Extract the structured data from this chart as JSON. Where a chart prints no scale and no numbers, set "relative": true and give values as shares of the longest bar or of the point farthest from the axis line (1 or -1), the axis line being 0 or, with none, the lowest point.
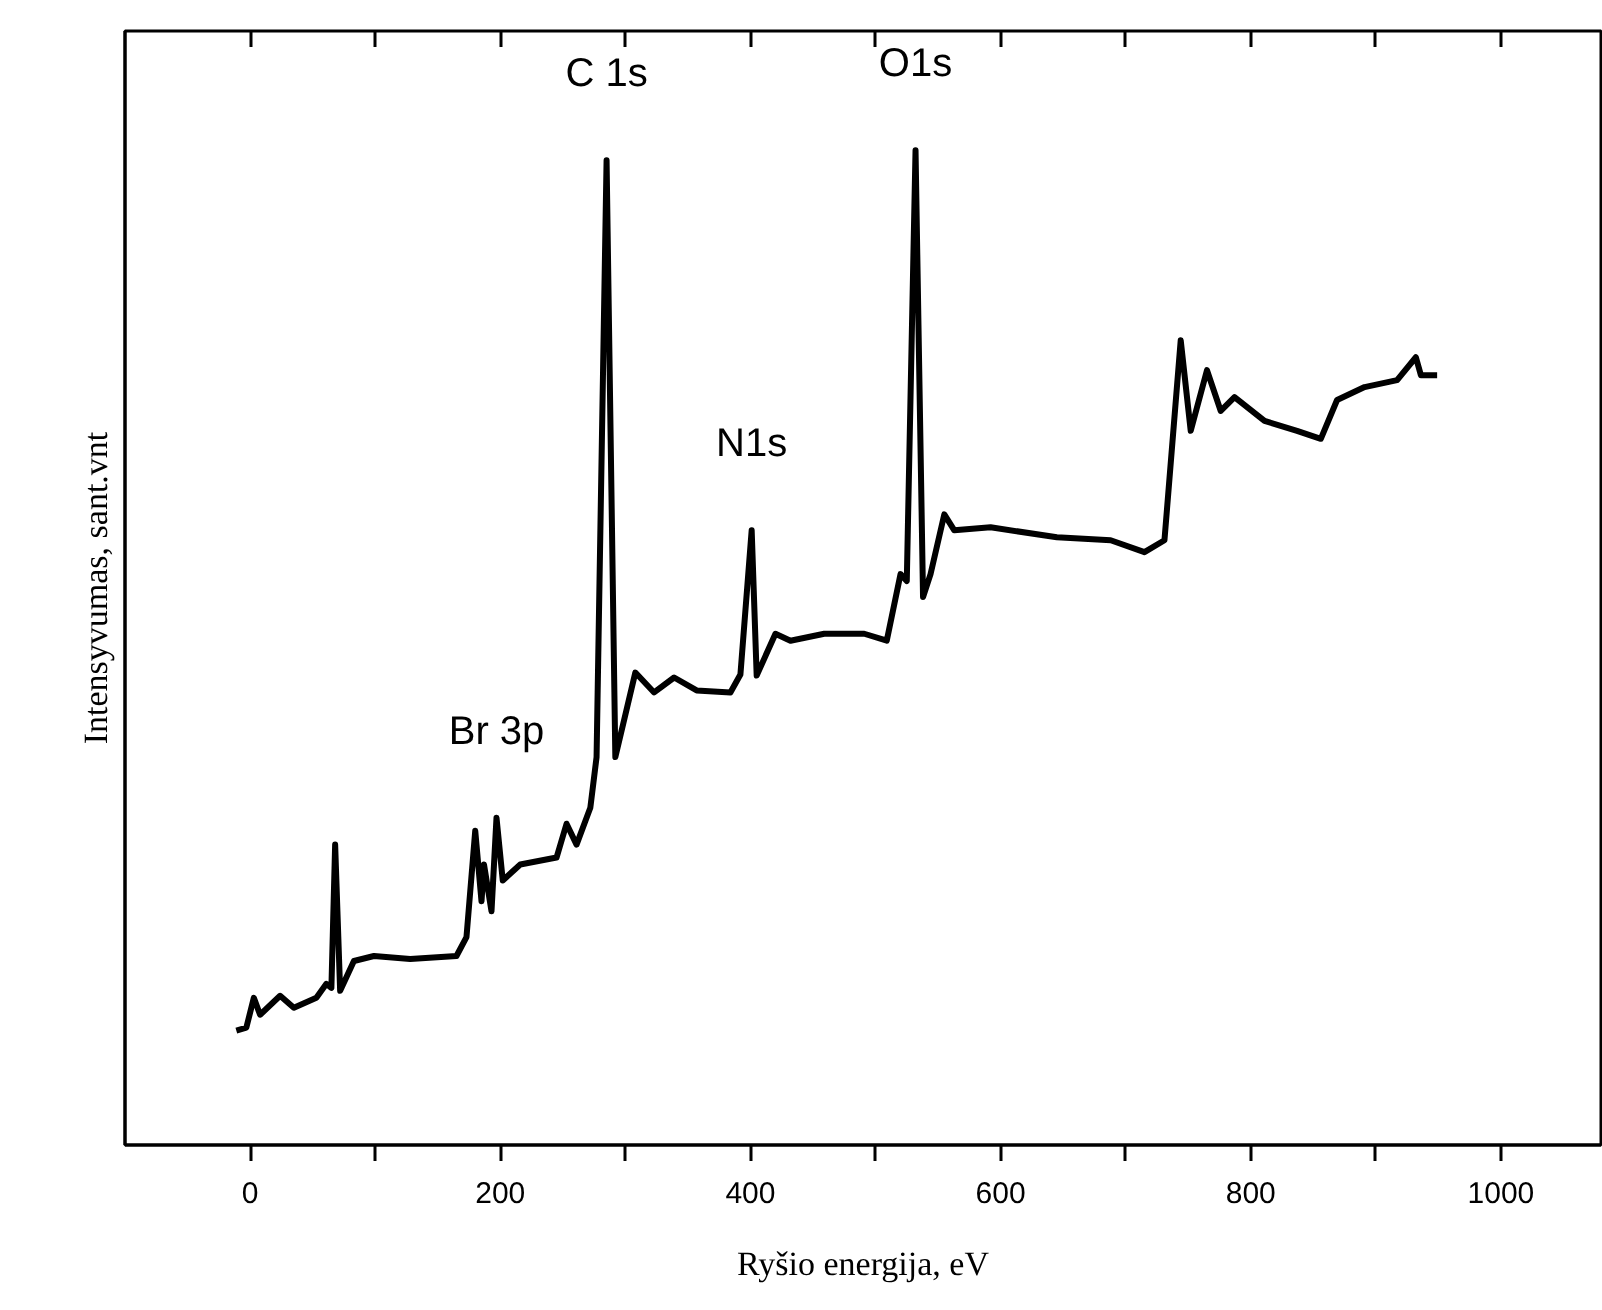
{
  "chart_data": {
    "type": "line",
    "relative": true,
    "xlabel": "Ryšio energija, eV",
    "ylabel": "Intensyvumas, sant.vnt",
    "xlim": [
      -100,
      1080
    ],
    "xticks": [
      0,
      {
        "value": 100,
        "label": null
      },
      200,
      {
        "value": 300,
        "label": null
      },
      400,
      {
        "value": 500,
        "label": null
      },
      600,
      {
        "value": 700,
        "label": null
      },
      800,
      {
        "value": 900,
        "label": null
      },
      1000
    ],
    "grid": false,
    "marker": "none",
    "line_style": "solid",
    "annotations": [
      {
        "text": "C 1s",
        "x": 285,
        "y": 0.99
      },
      {
        "text": "O1s",
        "x": 532,
        "y": 1.0
      },
      {
        "text": "N1s",
        "x": 401,
        "y": 0.618
      },
      {
        "text": "Br 3p",
        "x": 197,
        "y": 0.329
      }
    ],
    "series": [
      {
        "color": "#000000",
        "x": [
          -11,
          -3,
          3,
          8,
          24,
          35,
          53,
          61,
          65,
          68,
          72,
          83,
          99,
          128,
          165,
          173,
          180,
          185,
          187,
          193,
          197,
          202,
          216,
          245,
          253,
          261,
          272,
          277,
          285,
          292,
          308,
          323,
          339,
          357,
          384,
          392,
          401,
          405,
          420,
          432,
          459,
          491,
          509,
          520,
          525,
          532,
          538,
          544,
          555,
          563,
          592,
          645,
          688,
          715,
          731,
          744,
          752,
          765,
          776,
          787,
          811,
          837,
          856,
          869,
          891,
          917,
          932,
          936,
          949
        ],
        "values": [
          0.115,
          0.118,
          0.148,
          0.131,
          0.15,
          0.138,
          0.148,
          0.162,
          0.158,
          0.302,
          0.155,
          0.185,
          0.19,
          0.187,
          0.19,
          0.209,
          0.316,
          0.245,
          0.282,
          0.235,
          0.329,
          0.266,
          0.282,
          0.289,
          0.323,
          0.302,
          0.339,
          0.39,
          0.99,
          0.39,
          0.475,
          0.455,
          0.47,
          0.457,
          0.455,
          0.473,
          0.618,
          0.472,
          0.514,
          0.507,
          0.514,
          0.514,
          0.507,
          0.574,
          0.567,
          1.0,
          0.551,
          0.574,
          0.634,
          0.618,
          0.621,
          0.611,
          0.608,
          0.596,
          0.608,
          0.809,
          0.718,
          0.779,
          0.738,
          0.752,
          0.728,
          0.718,
          0.71,
          0.749,
          0.762,
          0.769,
          0.792,
          0.774,
          0.774
        ]
      }
    ]
  }
}
